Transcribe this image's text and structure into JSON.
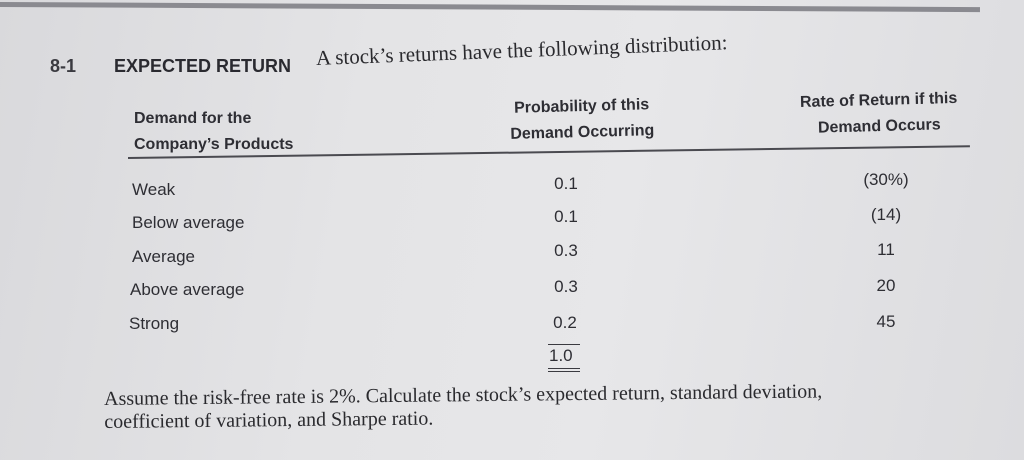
{
  "problem": {
    "number": "8-1",
    "title": "EXPECTED RETURN",
    "intro": "A stock’s returns have the following distribution:"
  },
  "table": {
    "headers": [
      [
        "Demand for the",
        "Company’s Products"
      ],
      [
        "Probability of this",
        "Demand Occurring"
      ],
      [
        "Rate of Return if this",
        "Demand Occurs"
      ]
    ],
    "rows": [
      {
        "demand": "Weak",
        "probability": "0.1",
        "return": "(30%)"
      },
      {
        "demand": "Below average",
        "probability": "0.1",
        "return": "(14)"
      },
      {
        "demand": "Average",
        "probability": "0.3",
        "return": "11"
      },
      {
        "demand": "Above average",
        "probability": "0.3",
        "return": "20"
      },
      {
        "demand": "Strong",
        "probability": "0.2",
        "return": "45"
      }
    ],
    "total": "1.0"
  },
  "question": {
    "line1": "Assume the risk-free rate is 2%. Calculate the stock’s expected return, standard deviation,",
    "line2": "coefficient of variation, and Sharpe ratio."
  }
}
